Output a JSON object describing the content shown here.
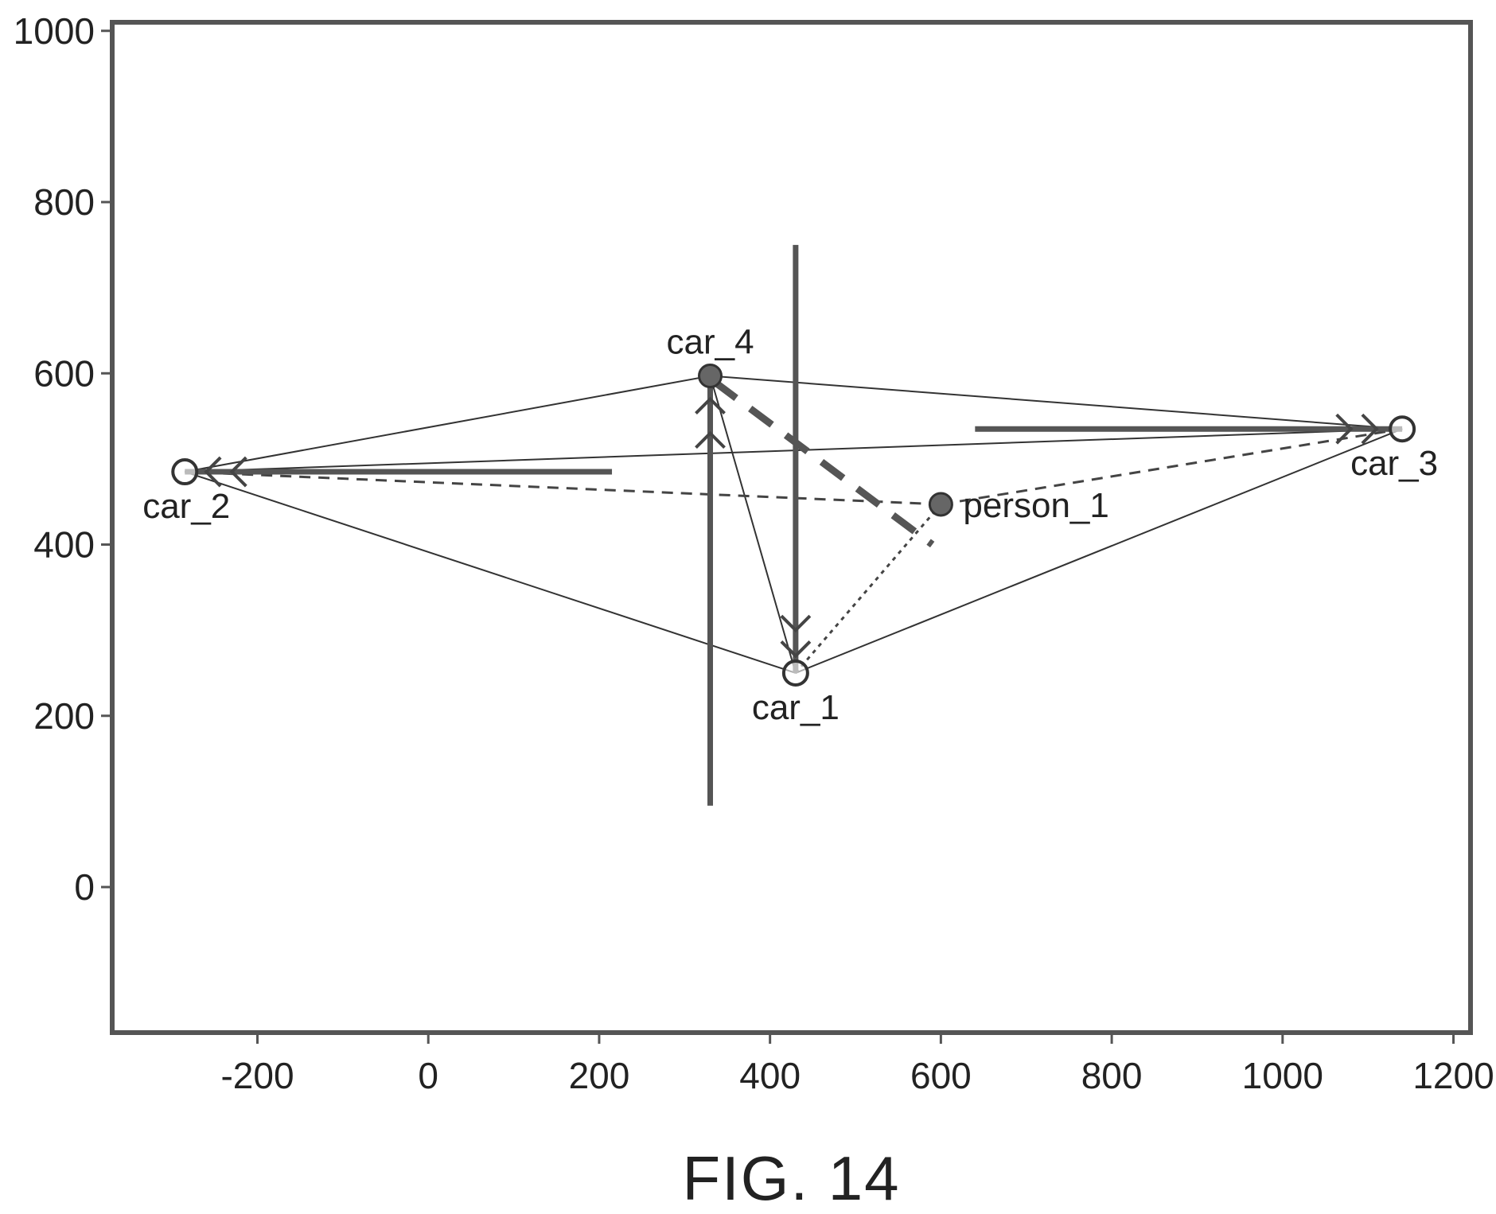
{
  "chart_data": {
    "type": "scatter",
    "title": "",
    "xlabel": "",
    "ylabel": "",
    "xlim": [
      -370,
      1220
    ],
    "ylim": [
      -170,
      1010
    ],
    "xticks": [
      -200,
      0,
      200,
      400,
      600,
      800,
      1000,
      1200
    ],
    "yticks": [
      0,
      200,
      400,
      600,
      800,
      1000
    ],
    "grid": false,
    "caption": "FIG. 14",
    "points": [
      {
        "label": "car_1",
        "x": 430,
        "y": 250,
        "marker": "open-circle",
        "label_pos": "below"
      },
      {
        "label": "car_2",
        "x": -285,
        "y": 485,
        "marker": "open-circle",
        "label_pos": "below"
      },
      {
        "label": "car_3",
        "x": 1140,
        "y": 535,
        "marker": "open-circle",
        "label_pos": "below"
      },
      {
        "label": "car_4",
        "x": 330,
        "y": 597,
        "marker": "filled-circle",
        "label_pos": "above"
      },
      {
        "label": "person_1",
        "x": 600,
        "y": 447,
        "marker": "filled-circle",
        "label_pos": "right"
      }
    ],
    "connections": [
      {
        "from": "car_2",
        "to": "car_4",
        "style": "solid-thin"
      },
      {
        "from": "car_4",
        "to": "car_3",
        "style": "solid-thin"
      },
      {
        "from": "car_2",
        "to": "car_1",
        "style": "solid-thin"
      },
      {
        "from": "car_1",
        "to": "car_3",
        "style": "solid-thin"
      },
      {
        "from": "car_4",
        "to": "car_1",
        "style": "solid-thin"
      },
      {
        "from": "car_2",
        "to": "car_3",
        "style": "solid-thin"
      },
      {
        "from": "car_2",
        "to": "person_1",
        "style": "dashed"
      },
      {
        "from": "person_1",
        "to": "car_3",
        "style": "dashed"
      },
      {
        "from": "car_1",
        "to": "person_1",
        "style": "dotted"
      }
    ],
    "segments": [
      {
        "x1": 430,
        "y1": 750,
        "x2": 430,
        "y2": 250,
        "style": "solid-thick"
      },
      {
        "x1": 330,
        "y1": 595,
        "x2": 330,
        "y2": 95,
        "style": "solid-thick"
      },
      {
        "x1": -285,
        "y1": 485,
        "x2": 215,
        "y2": 485,
        "style": "solid-thick"
      },
      {
        "x1": 640,
        "y1": 535,
        "x2": 1140,
        "y2": 535,
        "style": "solid-thick"
      },
      {
        "x1": 335,
        "y1": 590,
        "x2": 590,
        "y2": 400,
        "style": "thick-dashed"
      }
    ],
    "arrowheads": [
      {
        "x": 430,
        "y": 270,
        "angle": -90
      },
      {
        "x": 430,
        "y": 300,
        "angle": -90
      },
      {
        "x": 330,
        "y": 570,
        "angle": 90
      },
      {
        "x": 330,
        "y": 530,
        "angle": 90
      },
      {
        "x": -260,
        "y": 485,
        "angle": 180
      },
      {
        "x": -230,
        "y": 485,
        "angle": 180
      },
      {
        "x": 1110,
        "y": 535,
        "angle": 0
      },
      {
        "x": 1080,
        "y": 535,
        "angle": 0
      }
    ]
  }
}
